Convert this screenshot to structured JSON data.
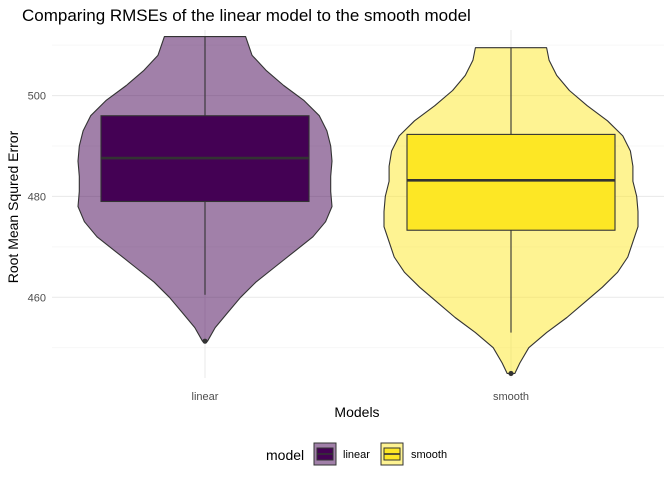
{
  "chart_data": {
    "type": "violin",
    "title": "Comparing RMSEs of the linear model to the smooth model",
    "xlabel": "Models",
    "ylabel": "Root Mean Squred Error",
    "ylim": [
      444,
      513
    ],
    "yticks": [
      460,
      480,
      500
    ],
    "grid": true,
    "legend": {
      "title": "model",
      "position": "bottom"
    },
    "categories": [
      "linear",
      "smooth"
    ],
    "series": [
      {
        "name": "linear",
        "fill": "#440154",
        "box": {
          "min": 460.5,
          "q1": 479,
          "median": 487.6,
          "q3": 496,
          "max": 511.7
        },
        "outliers": [
          451.3
        ],
        "density": [
          [
            451.3,
            0.02
          ],
          [
            454,
            0.08
          ],
          [
            457,
            0.18
          ],
          [
            460,
            0.28
          ],
          [
            463,
            0.4
          ],
          [
            466,
            0.55
          ],
          [
            469,
            0.7
          ],
          [
            472,
            0.85
          ],
          [
            475,
            0.95
          ],
          [
            478,
            1.0
          ],
          [
            481,
            0.99
          ],
          [
            484,
            0.99
          ],
          [
            487,
            1.0
          ],
          [
            490,
            0.99
          ],
          [
            493,
            0.96
          ],
          [
            496,
            0.9
          ],
          [
            499,
            0.78
          ],
          [
            502,
            0.62
          ],
          [
            505,
            0.48
          ],
          [
            508,
            0.37
          ],
          [
            511.7,
            0.32
          ]
        ]
      },
      {
        "name": "smooth",
        "fill": "#fde725",
        "box": {
          "min": 453,
          "q1": 473.3,
          "median": 483.2,
          "q3": 492.3,
          "max": 509.5
        },
        "outliers": [
          444.9
        ],
        "density": [
          [
            444.9,
            0.03
          ],
          [
            447,
            0.07
          ],
          [
            450,
            0.14
          ],
          [
            453,
            0.28
          ],
          [
            456,
            0.44
          ],
          [
            459,
            0.58
          ],
          [
            462,
            0.72
          ],
          [
            465,
            0.84
          ],
          [
            468,
            0.92
          ],
          [
            471,
            0.96
          ],
          [
            474,
            1.0
          ],
          [
            477,
            1.0
          ],
          [
            480,
            0.99
          ],
          [
            483,
            0.96
          ],
          [
            486,
            0.96
          ],
          [
            489,
            0.94
          ],
          [
            492,
            0.88
          ],
          [
            495,
            0.76
          ],
          [
            498,
            0.6
          ],
          [
            501,
            0.46
          ],
          [
            504,
            0.36
          ],
          [
            507,
            0.3
          ],
          [
            509.5,
            0.28
          ]
        ]
      }
    ]
  }
}
